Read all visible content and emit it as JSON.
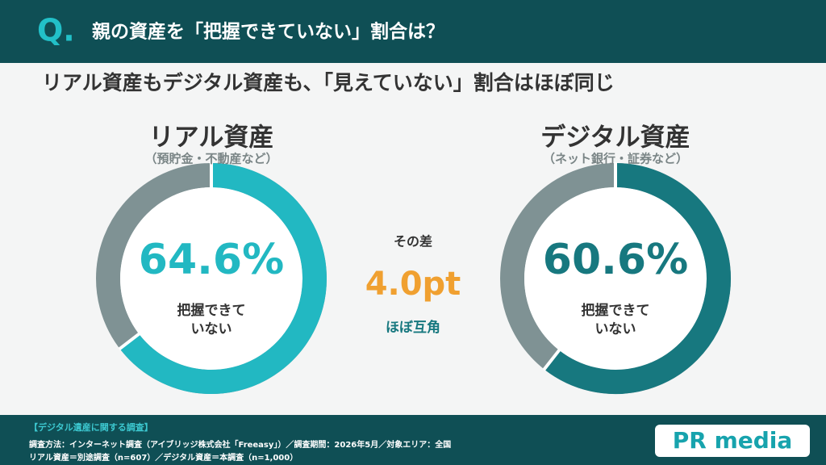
{
  "header": {
    "mark": "Q.",
    "title": "親の資産を「把握できていない」割合は？"
  },
  "subtitle": "リアル資産もデジタル資産も、「見えていない」割合はほぼ同じ",
  "chart_data": [
    {
      "type": "donut",
      "title": "リアル資産",
      "subtitle": "（預貯金・不動産など）",
      "values": [
        64.6
      ],
      "value_labels": [
        "64.6%"
      ],
      "color": "#22b8c2",
      "center_label": [
        "把握できて",
        "いない"
      ]
    },
    {
      "type": "donut",
      "title": "デジタル資産",
      "subtitle": "（ネット銀行・証券など）",
      "values": [
        60.6
      ],
      "value_labels": [
        "60.6%"
      ],
      "color": "#17787f",
      "center_label": [
        "把握できて",
        "いない"
      ]
    }
  ],
  "comparison": {
    "label": "その差",
    "value": "4.0pt",
    "note": "ほぼ互角"
  },
  "footer": {
    "title": "【デジタル遺産に関する調査】",
    "lines": [
      "調査方法：インターネット調査（アイブリッジ株式会社「Freeasy」）／調査期間：2026年5月／対象エリア：全国",
      "リアル資産＝別途調査（n=607）／デジタル資産＝本調査（n=1,000）"
    ],
    "logo": "PR media"
  }
}
